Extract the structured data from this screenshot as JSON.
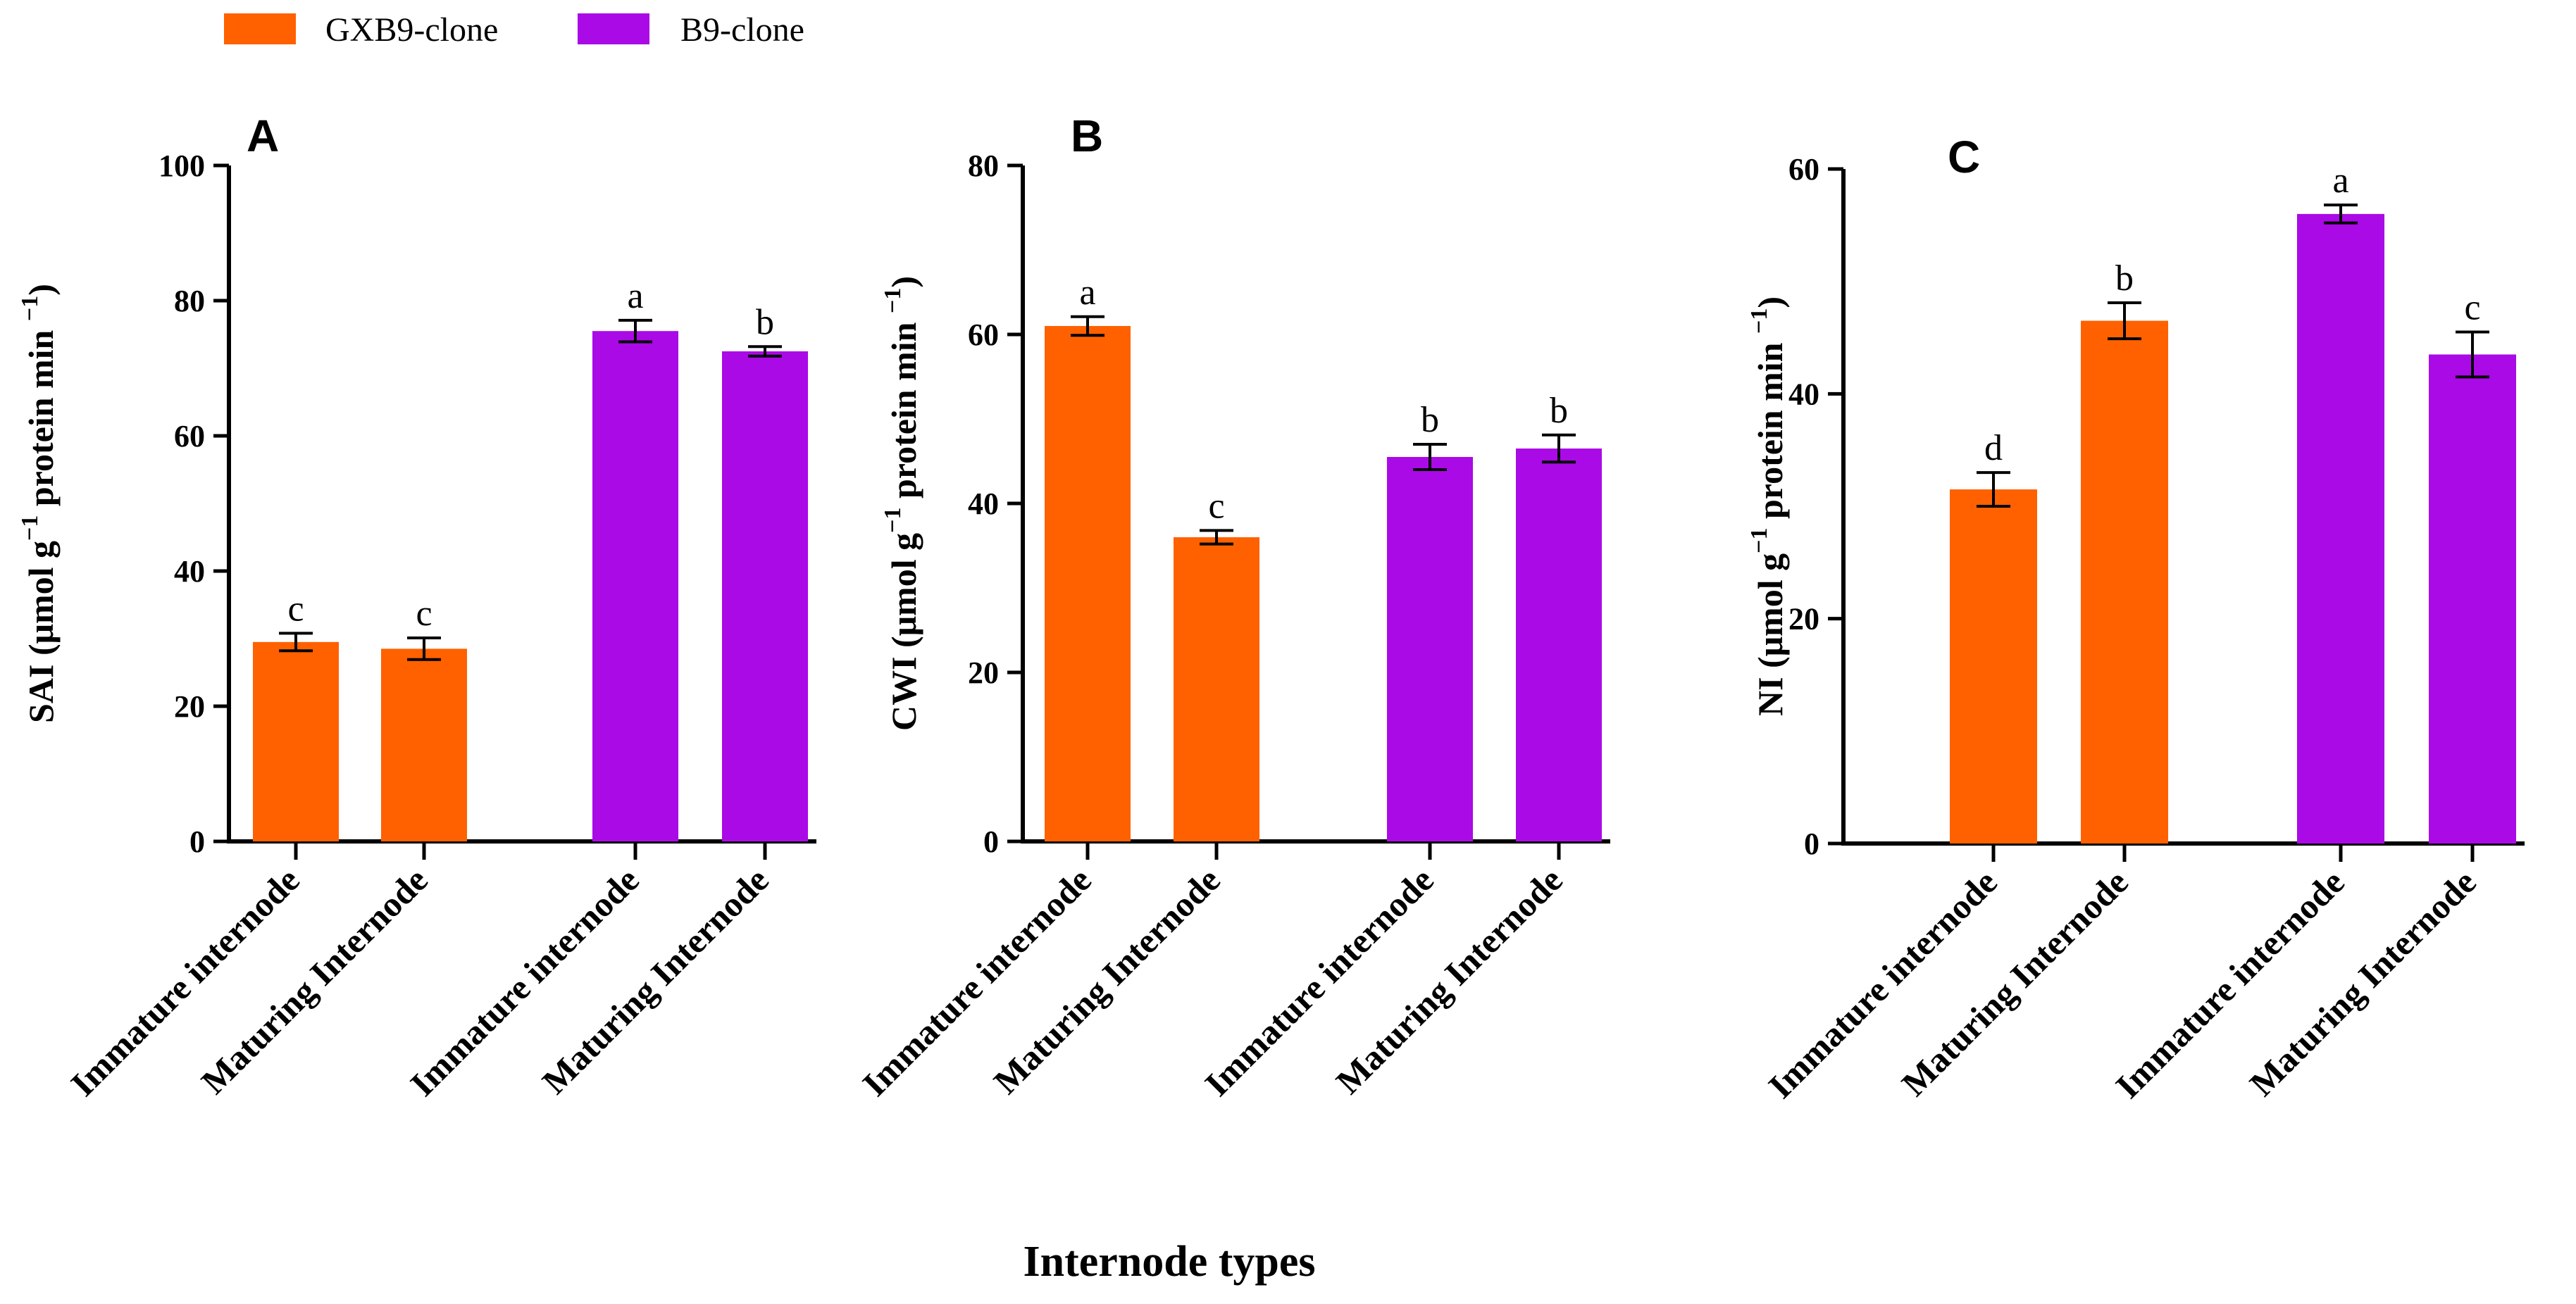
{
  "legend": [
    {
      "label": "GXB9-clone",
      "color": "#ff6100"
    },
    {
      "label": "B9-clone",
      "color": "#aa0ae6"
    }
  ],
  "x_title": "Internode types",
  "chart_data": [
    {
      "type": "bar",
      "panel": "A",
      "ylabel_main": "SAI (μmol",
      "ylabel_g": "g",
      "ylabel_exp1": "−1",
      "ylabel_rest": "protein min",
      "ylabel_exp2": "−1",
      "ylabel_close": ")",
      "ylim": [
        0,
        100
      ],
      "yticks": [
        "0",
        "20",
        "40",
        "60",
        "80",
        "100"
      ],
      "categories": [
        "Immature internode",
        "Maturing Internode",
        "Immature internode",
        "Maturing Internode"
      ],
      "groups": [
        "GXB9-clone",
        "GXB9-clone",
        "B9-clone",
        "B9-clone"
      ],
      "values": [
        29.5,
        28.5,
        75.5,
        72.5
      ],
      "errors": [
        1.3,
        1.6,
        1.6,
        0.7
      ],
      "letters": [
        "c",
        "c",
        "a",
        "b"
      ]
    },
    {
      "type": "bar",
      "panel": "B",
      "ylabel_main": "CWI (μmol",
      "ylabel_g": "g",
      "ylabel_exp1": "−1",
      "ylabel_rest": "protein min",
      "ylabel_exp2": "−1",
      "ylabel_close": ")",
      "ylim": [
        0,
        80
      ],
      "yticks": [
        "0",
        "20",
        "40",
        "60",
        "80"
      ],
      "categories": [
        "Immature internode",
        "Maturing Internode",
        "Immature internode",
        "Maturing Internode"
      ],
      "groups": [
        "GXB9-clone",
        "GXB9-clone",
        "B9-clone",
        "B9-clone"
      ],
      "values": [
        61.0,
        36.0,
        45.5,
        46.5
      ],
      "errors": [
        1.1,
        0.8,
        1.5,
        1.6
      ],
      "letters": [
        "a",
        "c",
        "b",
        "b"
      ]
    },
    {
      "type": "bar",
      "panel": "C",
      "ylabel_main": "NI (μmol",
      "ylabel_g": "g",
      "ylabel_exp1": "−1",
      "ylabel_rest": "protein min",
      "ylabel_exp2": "−1",
      "ylabel_close": ")",
      "ylim": [
        0,
        60
      ],
      "yticks": [
        "0",
        "20",
        "40",
        "60"
      ],
      "categories": [
        "Immature internode",
        "Maturing Internode",
        "Immature internode",
        "Maturing Internode"
      ],
      "groups": [
        "GXB9-clone",
        "GXB9-clone",
        "B9-clone",
        "B9-clone"
      ],
      "values": [
        31.5,
        46.5,
        56.0,
        43.5
      ],
      "errors": [
        1.5,
        1.6,
        0.8,
        2.0
      ],
      "letters": [
        "d",
        "b",
        "a",
        "c"
      ]
    }
  ]
}
